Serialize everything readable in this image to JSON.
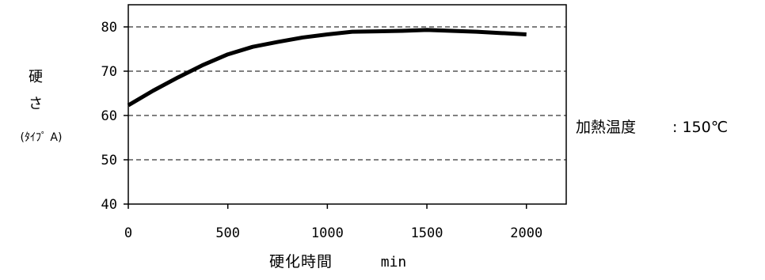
{
  "chart_data": {
    "type": "line",
    "x": [
      0,
      125,
      250,
      375,
      500,
      625,
      750,
      875,
      1000,
      1125,
      1250,
      1375,
      1500,
      1625,
      1750,
      1875,
      2000
    ],
    "series": [
      {
        "values": [
          62.3,
          65.6,
          68.6,
          71.4,
          73.8,
          75.5,
          76.6,
          77.6,
          78.3,
          78.9,
          79.0,
          79.1,
          79.3,
          79.1,
          78.9,
          78.6,
          78.3
        ],
        "color": "#000000"
      }
    ],
    "xlim": [
      0,
      2200
    ],
    "ylim": [
      40,
      85
    ],
    "x_ticks": [
      0,
      500,
      1000,
      1500,
      2000
    ],
    "x_tick_labels": [
      "0",
      "500",
      "1000",
      "1500",
      "2000"
    ],
    "y_ticks": [
      40,
      50,
      60,
      70,
      80
    ],
    "y_tick_labels": [
      "40",
      "50",
      "60",
      "70",
      "80"
    ],
    "ylabel_line1": "硬",
    "ylabel_line2": "さ",
    "ylabel_line3": "(ﾀｲﾌﾟ A)",
    "xlabel": "硬化時間",
    "xunit": "min",
    "annotation_label": "加熱温度",
    "annotation_value": ": 150℃",
    "grid": "horizontal-dashed",
    "legend": "none"
  }
}
